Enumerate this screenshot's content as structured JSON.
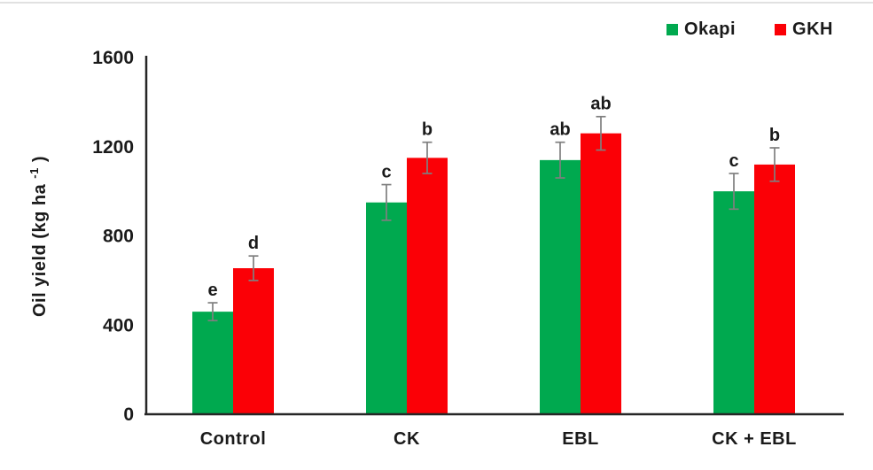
{
  "legend": {
    "position": "top-right"
  },
  "y_axis_title": {
    "main": "Oil yield (kg ha ",
    "sup": "-1",
    "close": " )"
  },
  "chart_data": {
    "type": "bar",
    "title": "",
    "xlabel": "",
    "ylabel": "Oil yield (kg ha -1 )",
    "categories": [
      "Control",
      "CK",
      "EBL",
      "CK + EBL"
    ],
    "series": [
      {
        "name": "Okapi",
        "color": "#00A94F",
        "values": [
          460,
          950,
          1140,
          1000
        ],
        "errors": [
          40,
          80,
          80,
          80
        ],
        "letters": [
          "e",
          "c",
          "ab",
          "c"
        ]
      },
      {
        "name": "GKH",
        "color": "#FB0006",
        "values": [
          655,
          1150,
          1260,
          1120
        ],
        "errors": [
          55,
          70,
          75,
          75
        ],
        "letters": [
          "d",
          "b",
          "ab",
          "b"
        ]
      }
    ],
    "ylim": [
      0,
      1600
    ],
    "y_ticks": [
      0,
      400,
      800,
      1200,
      1600
    ],
    "grid": false,
    "legend_position": "top-right",
    "error_bar_color": "#7f7f7f",
    "axis_color": "#262626"
  }
}
